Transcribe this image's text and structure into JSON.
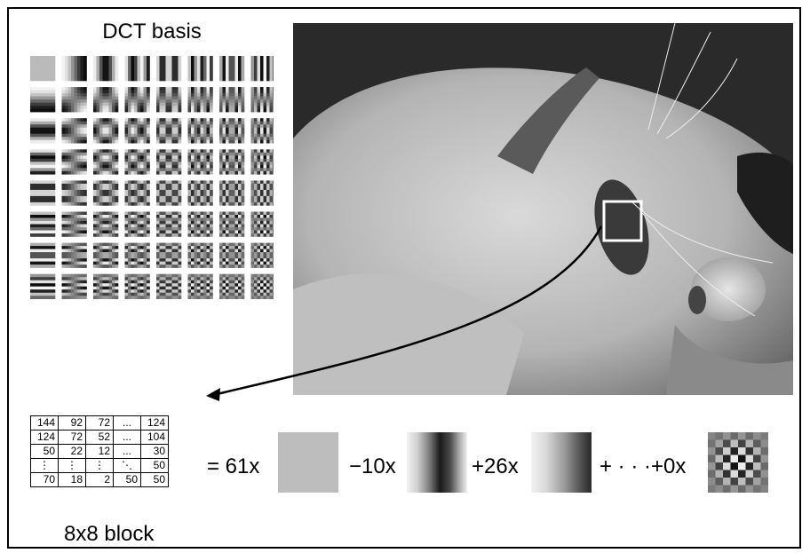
{
  "dct_basis_title": "DCT basis",
  "block_label": "8x8 block",
  "block_table": [
    [
      "144",
      "92",
      "72",
      "...",
      "124"
    ],
    [
      "124",
      "72",
      "52",
      "...",
      "104"
    ],
    [
      "50",
      "22",
      "12",
      "...",
      "30"
    ],
    [
      "⋮",
      "⋮",
      "⋮",
      "⋱",
      "50"
    ],
    [
      "70",
      "18",
      "2",
      "50",
      "50"
    ]
  ],
  "equation": {
    "term1": "= 61x",
    "term2": "−10x",
    "term3": "+26x",
    "term4": "+ · · ·+0x"
  },
  "dct_basis_size": 8,
  "colors": {
    "frame": "#000000",
    "highlight_box": "#ffffff",
    "flat_tile": "#bdbdbd"
  }
}
